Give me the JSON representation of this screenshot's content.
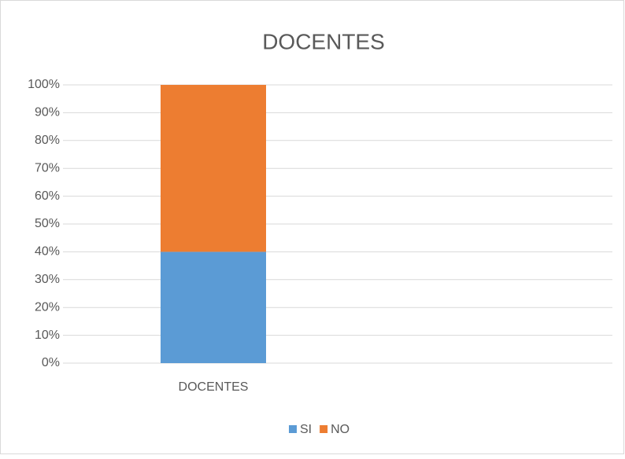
{
  "chart_data": {
    "type": "stacked_bar",
    "title": "DOCENTES",
    "categories": [
      "DOCENTES"
    ],
    "series": [
      {
        "name": "SI",
        "color": "#5b9bd5",
        "values": [
          40
        ]
      },
      {
        "name": "NO",
        "color": "#ed7d31",
        "values": [
          60
        ]
      }
    ],
    "ylim": [
      0,
      100
    ],
    "yticks": [
      {
        "value": 0,
        "label": "0%"
      },
      {
        "value": 10,
        "label": "10%"
      },
      {
        "value": 20,
        "label": "20%"
      },
      {
        "value": 30,
        "label": "30%"
      },
      {
        "value": 40,
        "label": "40%"
      },
      {
        "value": 50,
        "label": "50%"
      },
      {
        "value": 60,
        "label": "60%"
      },
      {
        "value": 70,
        "label": "70%"
      },
      {
        "value": 80,
        "label": "80%"
      },
      {
        "value": 90,
        "label": "90%"
      },
      {
        "value": 100,
        "label": "100%"
      }
    ],
    "grid": true,
    "legend": "bottom"
  }
}
